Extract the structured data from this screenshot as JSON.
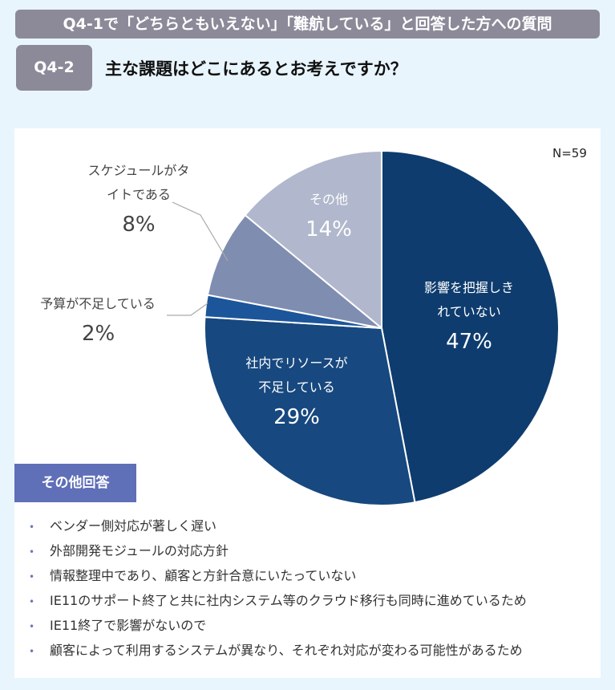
{
  "header": {
    "banner": "Q4-1で「どちらともいえない」「難航している」と回答した方への質問",
    "badge": "Q4-2",
    "question": "主な課題はどこにあるとお考えですか？"
  },
  "chart_data": {
    "type": "pie",
    "n_label": "N=59",
    "start": "12 o'clock",
    "direction": "clockwise",
    "slices": [
      {
        "label1": "影響を把握しき",
        "label2": "れていない",
        "value": 47,
        "pct": "47%",
        "color": "#0e3c6e"
      },
      {
        "label1": "社内でリソースが",
        "label2": "不足している",
        "value": 29,
        "pct": "29%",
        "color": "#17487f"
      },
      {
        "label1": "予算が不足している",
        "label2": "",
        "value": 2,
        "pct": "2%",
        "color": "#1d559a"
      },
      {
        "label1": "スケジュールがタ",
        "label2": "イトである",
        "value": 8,
        "pct": "8%",
        "color": "#7f8db0"
      },
      {
        "label1": "その他",
        "label2": "",
        "value": 14,
        "pct": "14%",
        "color": "#b1b8cd"
      }
    ]
  },
  "other": {
    "heading": "その他回答",
    "items": [
      "ベンダー側対応が著しく遅い",
      "外部開発モジュールの対応方針",
      "情報整理中であり、顧客と方針合意にいたっていない",
      "IE11のサポート終了と共に社内システム等のクラウド移行も同時に進めているため",
      "IE11終了で影響がないので",
      "顧客によって利用するシステムが異なり、それぞれ対応が変わる可能性があるため"
    ]
  }
}
